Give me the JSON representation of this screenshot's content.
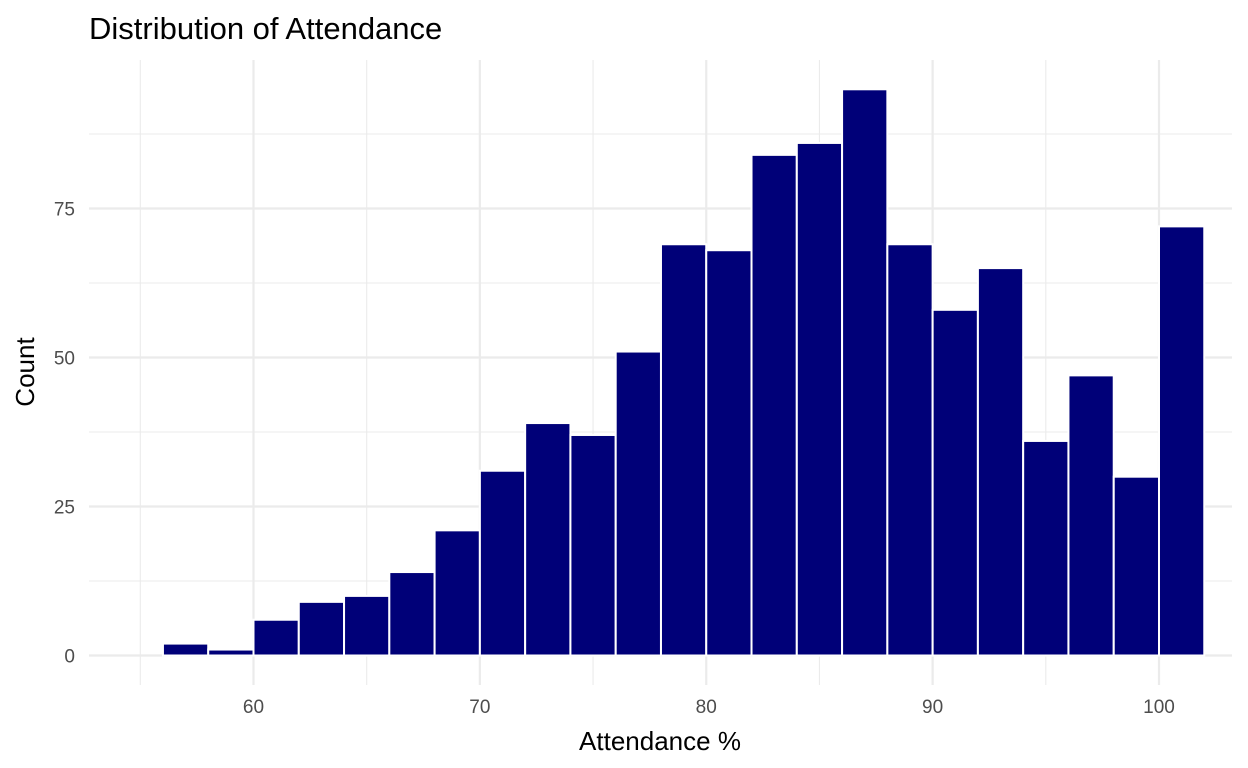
{
  "chart_data": {
    "type": "bar",
    "title": "Distribution of Attendance",
    "xlabel": "Attendance %",
    "ylabel": "Count",
    "xlim": [
      55,
      101
    ],
    "ylim": [
      0,
      94
    ],
    "x_ticks": [
      60,
      70,
      80,
      90,
      100
    ],
    "y_ticks": [
      0,
      25,
      50,
      75
    ],
    "bin_width": 2,
    "bins": [
      {
        "x": 57,
        "count": 2
      },
      {
        "x": 59,
        "count": 1
      },
      {
        "x": 61,
        "count": 6
      },
      {
        "x": 63,
        "count": 9
      },
      {
        "x": 65,
        "count": 10
      },
      {
        "x": 67,
        "count": 14
      },
      {
        "x": 69,
        "count": 21
      },
      {
        "x": 71,
        "count": 31
      },
      {
        "x": 73,
        "count": 39
      },
      {
        "x": 75,
        "count": 37
      },
      {
        "x": 77,
        "count": 51
      },
      {
        "x": 79,
        "count": 69
      },
      {
        "x": 81,
        "count": 68
      },
      {
        "x": 83,
        "count": 84
      },
      {
        "x": 85,
        "count": 86
      },
      {
        "x": 87,
        "count": 95
      },
      {
        "x": 89,
        "count": 69
      },
      {
        "x": 91,
        "count": 58
      },
      {
        "x": 93,
        "count": 65
      },
      {
        "x": 95,
        "count": 36
      },
      {
        "x": 97,
        "count": 47
      },
      {
        "x": 99,
        "count": 30
      },
      {
        "x": 101,
        "count": 72
      }
    ],
    "bar_color": "#000078",
    "bar_outline": "#ffffff",
    "grid": true,
    "legend": "none"
  }
}
